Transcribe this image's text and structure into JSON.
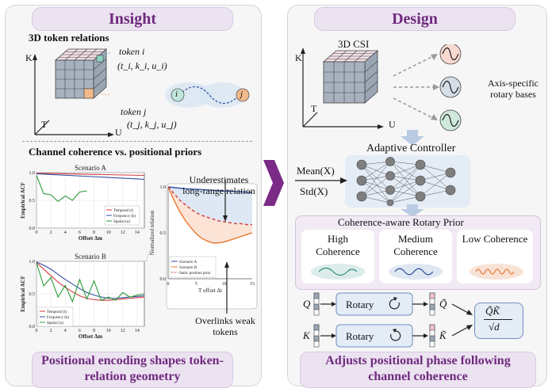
{
  "insight": {
    "header": "Insight",
    "token_relations": {
      "title": "3D token relations",
      "axis_k": "K",
      "axis_t": "T",
      "axis_u": "U",
      "token_i": "token i",
      "token_i_coord": "(t_i, k_i, u_i)",
      "token_j": "token j",
      "token_j_coord": "(t_j, k_j, u_j)",
      "node_i": "i",
      "node_j": "j"
    },
    "coherence": {
      "title": "Channel coherence vs. positional priors",
      "scenario_a": "Scenario A",
      "scenario_b": "Scenario B",
      "underestimates": "Underestimates long-range relation",
      "overlinks": "Overlinks weak tokens",
      "left_ylabel": "Empirical ACF",
      "left_xlabel": "Offset Δm",
      "legend_temporal": "Temporal (t)",
      "legend_frequency": "Frequency (k)",
      "legend_spatial": "Spatial (u)",
      "right_ylabel": "Normalized relation",
      "right_xlabel": "T offset Δt",
      "right_legend_a": "Scenario A",
      "right_legend_b": "Scenario B",
      "right_legend_static": "Static position prior"
    },
    "footer": "Positional encoding shapes token-relation geometry"
  },
  "design": {
    "header": "Design",
    "csi_title": "3D CSI",
    "axis_k": "K",
    "axis_t": "T",
    "axis_u": "U",
    "bases_label": "Axis-specific rotary bases",
    "controller_title": "Adaptive Controller",
    "mean_label": "Mean(X)",
    "std_label": "Std(X)",
    "prior_title": "Coherence-aware Rotary Prior",
    "high": "High Coherence",
    "medium": "Medium Coherence",
    "low": "Low Coherence",
    "q": "Q",
    "k": "K",
    "rotary": "Rotary",
    "q_tilde": "Q̃",
    "k_tilde": "K̃",
    "formula_num": "Q̃K̃",
    "formula_den": "√d",
    "footer": "Adjusts positional phase following channel coherence"
  },
  "colors": {
    "accent_purple": "#6f2a7e",
    "header_bg": "#ece3f1",
    "scenario_a": "#2f4f9f",
    "scenario_b": "#e8772e",
    "static": "#d23a3a",
    "spatial": "#2e9a3a"
  },
  "chart_data": [
    {
      "type": "line",
      "title": "Scenario A",
      "xlabel": "Offset Δm",
      "ylabel": "Empirical ACF",
      "xlim": [
        0,
        15
      ],
      "ylim": [
        0.0,
        1.0
      ],
      "x_ticks": [
        0,
        2,
        4,
        6,
        8,
        10,
        12,
        14
      ],
      "y_ticks": [
        0.0,
        0.5,
        1.0
      ],
      "series": [
        {
          "name": "Temporal (t)",
          "x": [
            0,
            15
          ],
          "y": [
            0.99,
            0.95
          ]
        },
        {
          "name": "Frequency (k)",
          "x": [
            0,
            15
          ],
          "y": [
            0.98,
            0.88
          ]
        },
        {
          "name": "Spatial (u)",
          "x": [
            0,
            1,
            2,
            3,
            4,
            5,
            6,
            7
          ],
          "y": [
            0.95,
            0.62,
            0.6,
            0.48,
            0.58,
            0.5,
            0.65,
            0.67
          ]
        }
      ]
    },
    {
      "type": "line",
      "title": "Scenario B",
      "xlabel": "Offset Δm",
      "ylabel": "Empirical ACF",
      "xlim": [
        0,
        15
      ],
      "ylim": [
        0.0,
        1.0
      ],
      "x_ticks": [
        0,
        2,
        4,
        6,
        8,
        10,
        12,
        14
      ],
      "y_ticks": [
        0.0,
        0.5,
        1.0
      ],
      "series": [
        {
          "name": "Temporal (t)",
          "x": [
            0,
            1,
            2,
            3,
            4,
            5,
            6,
            7,
            8,
            9,
            10,
            11,
            12,
            13,
            14,
            15
          ],
          "y": [
            0.98,
            0.88,
            0.78,
            0.68,
            0.6,
            0.53,
            0.47,
            0.43,
            0.41,
            0.4,
            0.4,
            0.41,
            0.42,
            0.43,
            0.44,
            0.45
          ]
        },
        {
          "name": "Frequency (k)",
          "x": [
            0,
            1,
            2,
            3,
            4,
            5,
            6,
            7,
            8,
            9,
            10,
            11,
            12,
            13,
            14,
            15
          ],
          "y": [
            0.99,
            0.94,
            0.88,
            0.8,
            0.72,
            0.65,
            0.58,
            0.52,
            0.48,
            0.45,
            0.43,
            0.43,
            0.44,
            0.45,
            0.46,
            0.47
          ]
        },
        {
          "name": "Spatial (u)",
          "x": [
            0,
            1,
            2,
            3,
            4,
            5,
            6,
            7,
            8,
            9,
            10,
            11,
            12,
            13,
            14,
            15
          ],
          "y": [
            0.98,
            0.62,
            0.75,
            0.45,
            0.63,
            0.38,
            0.72,
            0.42,
            0.7,
            0.4,
            0.45,
            0.4,
            0.52,
            0.45,
            0.48,
            0.5
          ]
        }
      ]
    },
    {
      "type": "line",
      "title": "",
      "xlabel": "T offset Δt",
      "ylabel": "Normalized relation",
      "xlim": [
        0,
        15
      ],
      "ylim": [
        0.0,
        1.0
      ],
      "x_ticks": [
        0,
        5,
        10,
        15
      ],
      "y_ticks": [
        0.0,
        0.5,
        1.0
      ],
      "series": [
        {
          "name": "Scenario A",
          "x": [
            0,
            3,
            6,
            9,
            12,
            15
          ],
          "y": [
            1.0,
            0.98,
            0.97,
            0.96,
            0.95,
            0.94
          ]
        },
        {
          "name": "Scenario B",
          "x": [
            0,
            1,
            2,
            3,
            4,
            5,
            6,
            7,
            8,
            9,
            10,
            11,
            12,
            13,
            14,
            15
          ],
          "y": [
            1.0,
            0.86,
            0.74,
            0.64,
            0.56,
            0.49,
            0.44,
            0.41,
            0.39,
            0.39,
            0.4,
            0.42,
            0.44,
            0.46,
            0.48,
            0.5
          ]
        },
        {
          "name": "Static position prior",
          "x": [
            0,
            1,
            2,
            3,
            4,
            5,
            6,
            7,
            8,
            9,
            10,
            11,
            12,
            13,
            14,
            15
          ],
          "y": [
            1.0,
            0.93,
            0.86,
            0.81,
            0.76,
            0.72,
            0.69,
            0.67,
            0.65,
            0.63,
            0.62,
            0.61,
            0.6,
            0.6,
            0.59,
            0.59
          ]
        }
      ]
    }
  ]
}
